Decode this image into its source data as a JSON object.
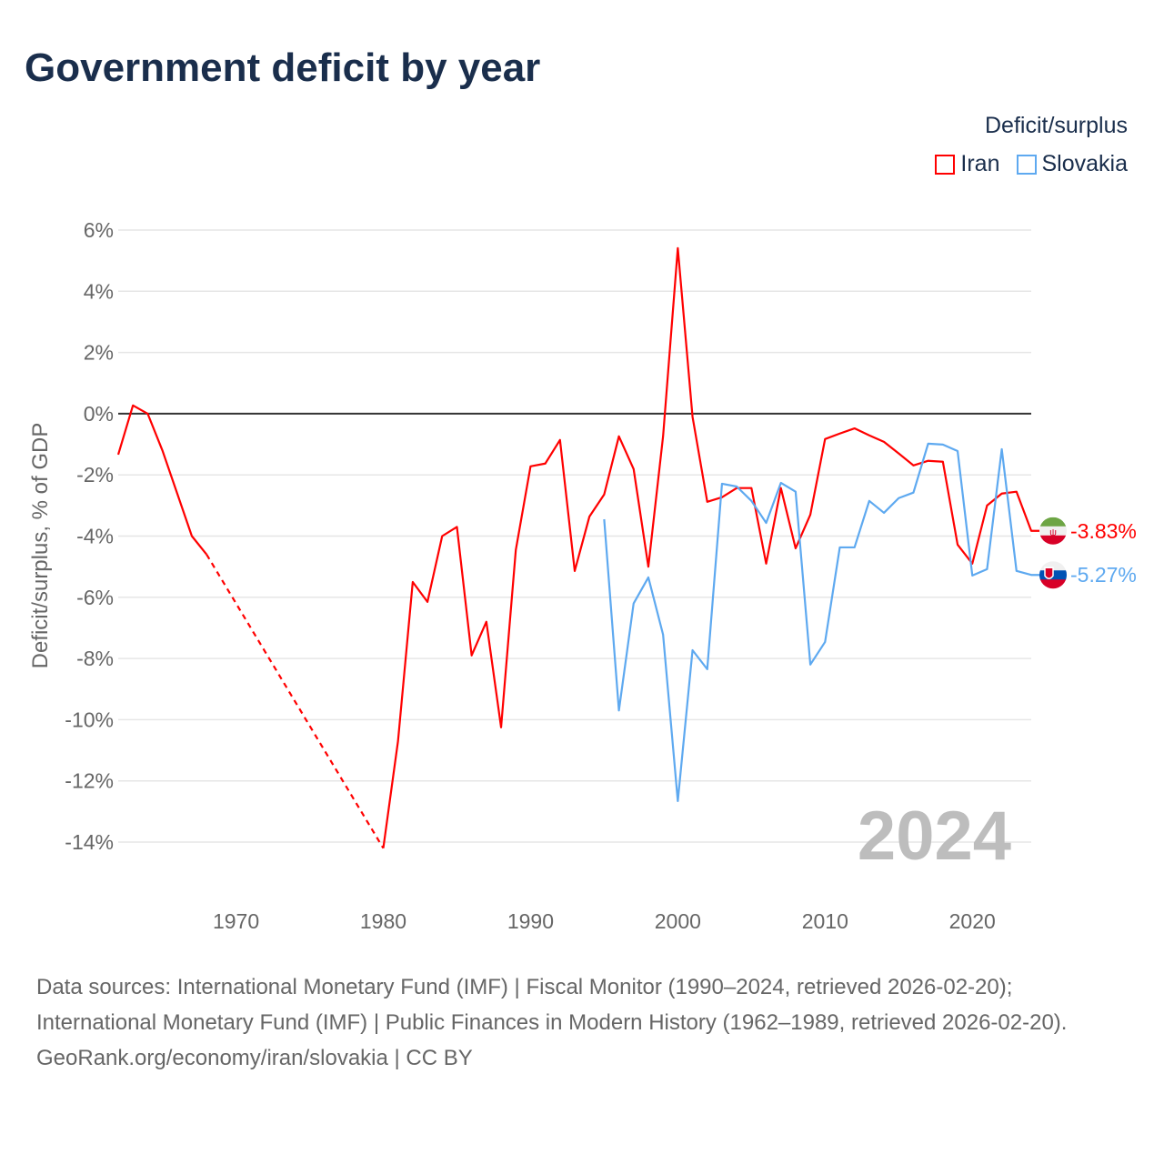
{
  "title": "Government deficit by year",
  "legend": {
    "title": "Deficit/surplus",
    "items": [
      {
        "label": "Iran",
        "color": "#ff0000"
      },
      {
        "label": "Slovakia",
        "color": "#5ea9f0"
      }
    ]
  },
  "chart_data": {
    "type": "line",
    "title": "Government deficit by year",
    "xlabel": "",
    "ylabel": "Deficit/surplus, % of GDP",
    "xlim": [
      1962,
      2024
    ],
    "ylim": [
      -14,
      6
    ],
    "x_ticks": [
      1970,
      1980,
      1990,
      2000,
      2010,
      2020
    ],
    "y_ticks": [
      6,
      4,
      2,
      0,
      -2,
      -4,
      -6,
      -8,
      -10,
      -12,
      -14
    ],
    "y_tick_labels": [
      "6%",
      "4%",
      "2%",
      "0%",
      "-2%",
      "-4%",
      "-6%",
      "-8%",
      "-10%",
      "-12%",
      "-14%"
    ],
    "year_watermark": "2024",
    "grid": true,
    "legend_position": "top-right",
    "series": [
      {
        "name": "Iran",
        "color": "#ff0000",
        "end_label": "-3.83%",
        "dashed_gap": [
          1968,
          1980
        ],
        "x": [
          1962,
          1963,
          1964,
          1965,
          1966,
          1967,
          1968,
          1980,
          1981,
          1982,
          1983,
          1984,
          1985,
          1986,
          1987,
          1988,
          1989,
          1990,
          1991,
          1992,
          1993,
          1994,
          1995,
          1996,
          1997,
          1998,
          1999,
          2000,
          2001,
          2002,
          2003,
          2004,
          2005,
          2006,
          2007,
          2008,
          2009,
          2010,
          2011,
          2012,
          2013,
          2014,
          2015,
          2016,
          2017,
          2018,
          2019,
          2020,
          2021,
          2022,
          2023,
          2024
        ],
        "values": [
          -1.34,
          0.27,
          0,
          -1.2,
          -2.6,
          -4.0,
          -4.6,
          -14.2,
          -10.7,
          -5.5,
          -6.15,
          -4.0,
          -3.7,
          -7.9,
          -6.8,
          -10.25,
          -4.45,
          -1.72,
          -1.63,
          -0.86,
          -5.14,
          -3.36,
          -2.64,
          -0.74,
          -1.81,
          -5.0,
          -0.74,
          5.41,
          -0.1,
          -2.88,
          -2.73,
          -2.43,
          -2.43,
          -4.9,
          -2.43,
          -4.4,
          -3.3,
          -0.83,
          -0.65,
          -0.48,
          -0.71,
          -0.92,
          -1.3,
          -1.69,
          -1.54,
          -1.57,
          -4.28,
          -4.9,
          -3.0,
          -2.61,
          -2.55,
          -3.83
        ]
      },
      {
        "name": "Slovakia",
        "color": "#5ea9f0",
        "end_label": "-5.27%",
        "x": [
          1995,
          1996,
          1997,
          1998,
          1999,
          2000,
          2001,
          2002,
          2003,
          2004,
          2005,
          2006,
          2007,
          2008,
          2009,
          2010,
          2011,
          2012,
          2013,
          2014,
          2015,
          2016,
          2017,
          2018,
          2019,
          2020,
          2021,
          2022,
          2023,
          2024
        ],
        "values": [
          -3.45,
          -9.7,
          -6.2,
          -5.35,
          -7.22,
          -12.66,
          -7.73,
          -8.35,
          -2.29,
          -2.38,
          -2.85,
          -3.57,
          -2.26,
          -2.55,
          -8.2,
          -7.46,
          -4.37,
          -4.37,
          -2.85,
          -3.24,
          -2.76,
          -2.58,
          -0.98,
          -1.01,
          -1.22,
          -5.29,
          -5.08,
          -1.16,
          -5.14,
          -5.27
        ]
      }
    ]
  },
  "footer": {
    "sources": "Data sources: International Monetary Fund (IMF) | Fiscal Monitor (1990–2024, retrieved 2026-02-20); International Monetary Fund (IMF) | Public Finances in Modern History (1962–1989, retrieved 2026-02-20).",
    "attribution": "GeoRank.org/economy/iran/slovakia | CC BY"
  }
}
